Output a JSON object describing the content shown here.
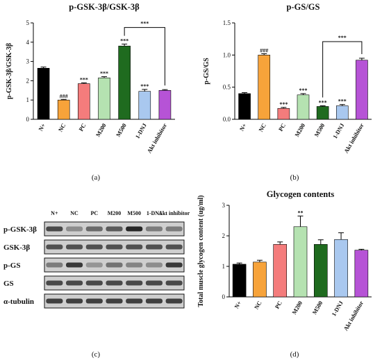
{
  "chart_data": [
    {
      "panel": "(a)",
      "type": "bar",
      "title": "p-GSK-3β/GSK-3β",
      "ylabel": "p-GSK-3β/GSK-3β",
      "xlabel": "",
      "ylim": [
        0,
        5
      ],
      "yticks": [
        "0",
        "1",
        "2",
        "3",
        "4",
        "5"
      ],
      "categories": [
        "N+",
        "NC",
        "PC",
        "M200",
        "M500",
        "1-DNJ",
        "Akt inhibitor"
      ],
      "values": [
        2.65,
        1.0,
        1.85,
        2.15,
        3.8,
        1.45,
        1.5
      ],
      "errors": [
        0.06,
        0.03,
        0.04,
        0.06,
        0.1,
        0.1,
        0.04
      ],
      "colors": [
        "#000000",
        "#f7a33a",
        "#f47c7c",
        "#b5e2b1",
        "#1f6b1f",
        "#a9c8ef",
        "#b653d6"
      ],
      "annotations": [
        "",
        "###",
        "***",
        "***",
        "***",
        "***",
        ""
      ],
      "bracket": {
        "from": 4,
        "to": 6,
        "label": "***"
      }
    },
    {
      "panel": "(b)",
      "type": "bar",
      "title": "p-GS/GS",
      "ylabel": "p-GS/GS",
      "xlabel": "",
      "ylim": [
        0,
        1.5
      ],
      "yticks": [
        "0.0",
        "0.5",
        "1.0",
        "1.5"
      ],
      "categories": [
        "N+",
        "NC",
        "PC",
        "M200",
        "M500",
        "1-DNJ",
        "Akt inhibitor"
      ],
      "values": [
        0.4,
        1.0,
        0.17,
        0.38,
        0.2,
        0.21,
        0.92
      ],
      "errors": [
        0.015,
        0.02,
        0.015,
        0.02,
        0.01,
        0.02,
        0.03
      ],
      "colors": [
        "#000000",
        "#f7a33a",
        "#f47c7c",
        "#b5e2b1",
        "#1f6b1f",
        "#a9c8ef",
        "#b653d6"
      ],
      "annotations": [
        "",
        "###",
        "***",
        "***",
        "***",
        "***",
        ""
      ],
      "bracket": {
        "from": 4,
        "to": 6,
        "label": "***"
      }
    },
    {
      "panel": "(d)",
      "type": "bar",
      "title": "Glycogen contents",
      "ylabel": "Total muscle glycogen content (ug/ml)",
      "xlabel": "",
      "ylim": [
        0,
        3
      ],
      "yticks": [
        "0",
        "1",
        "2",
        "3"
      ],
      "categories": [
        "N+",
        "NC",
        "PC",
        "M200",
        "M500",
        "1-DNJ",
        "Akt inhibitor"
      ],
      "values": [
        1.07,
        1.14,
        1.72,
        2.3,
        1.72,
        1.88,
        1.53
      ],
      "errors": [
        0.04,
        0.06,
        0.08,
        0.35,
        0.15,
        0.22,
        0.03
      ],
      "colors": [
        "#000000",
        "#f7a33a",
        "#f47c7c",
        "#b5e2b1",
        "#1f6b1f",
        "#a9c8ef",
        "#b653d6"
      ],
      "annotations": [
        "",
        "",
        "",
        "**",
        "",
        "",
        ""
      ]
    }
  ],
  "blot": {
    "panel": "(c)",
    "lanes": [
      "N+",
      "NC",
      "PC",
      "M200",
      "M500",
      "1-DNJ",
      "Akt inhibitor"
    ],
    "rows": [
      {
        "label": "p-GSK-3β",
        "intensity": [
          0.75,
          0.35,
          0.55,
          0.65,
          0.95,
          0.45,
          0.45
        ]
      },
      {
        "label": "GSK-3β",
        "intensity": [
          0.7,
          0.7,
          0.7,
          0.7,
          0.7,
          0.7,
          0.7
        ]
      },
      {
        "label": "p-GS",
        "intensity": [
          0.45,
          0.85,
          0.3,
          0.5,
          0.4,
          0.35,
          0.85
        ]
      },
      {
        "label": "GS",
        "intensity": [
          0.75,
          0.75,
          0.75,
          0.75,
          0.75,
          0.75,
          0.75
        ]
      },
      {
        "label": "α-tubulin",
        "intensity": [
          0.8,
          0.8,
          0.8,
          0.8,
          0.8,
          0.8,
          0.8
        ]
      }
    ]
  },
  "labels": {
    "a": "(a)",
    "b": "(b)",
    "c": "(c)",
    "d": "(d)"
  }
}
